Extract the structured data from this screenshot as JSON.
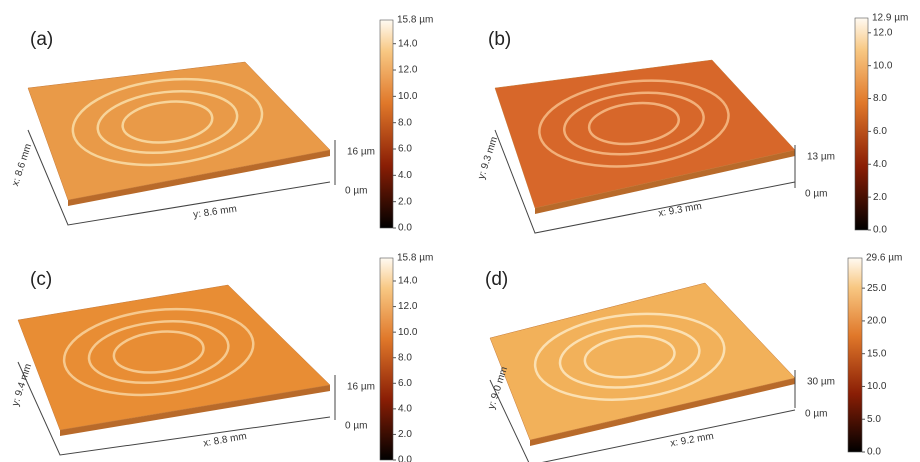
{
  "panels": [
    {
      "label": "(a)",
      "z_top": "16 µm",
      "z_bottom": "0 µm",
      "left_axis": "x: 8.6 mm",
      "bottom_axis": "y: 8.6 mm",
      "colorbar_max": "15.8 µm",
      "colorbar_ticks": [
        "14.0",
        "12.0",
        "10.0",
        "8.0",
        "6.0",
        "4.0",
        "2.0",
        "0.0"
      ]
    },
    {
      "label": "(b)",
      "z_top": "13 µm",
      "z_bottom": "0 µm",
      "left_axis": "y: 9.3 mm",
      "bottom_axis": "x: 9.3 mm",
      "colorbar_max": "12.9 µm",
      "colorbar_ticks": [
        "12.0",
        "10.0",
        "8.0",
        "6.0",
        "4.0",
        "2.0",
        "0.0"
      ]
    },
    {
      "label": "(c)",
      "z_top": "16 µm",
      "z_bottom": "0 µm",
      "left_axis": "y: 9.4 mm",
      "bottom_axis": "x: 8.8 mm",
      "colorbar_max": "15.8 µm",
      "colorbar_ticks": [
        "14.0",
        "12.0",
        "10.0",
        "8.0",
        "6.0",
        "4.0",
        "2.0",
        "0.0"
      ]
    },
    {
      "label": "(d)",
      "z_top": "30 µm",
      "z_bottom": "0 µm",
      "left_axis": "y: 9.0 mm",
      "bottom_axis": "x: 9.2 mm",
      "colorbar_max": "29.6 µm",
      "colorbar_ticks": [
        "25.0",
        "20.0",
        "15.0",
        "10.0",
        "5.0",
        "0.0"
      ]
    }
  ]
}
